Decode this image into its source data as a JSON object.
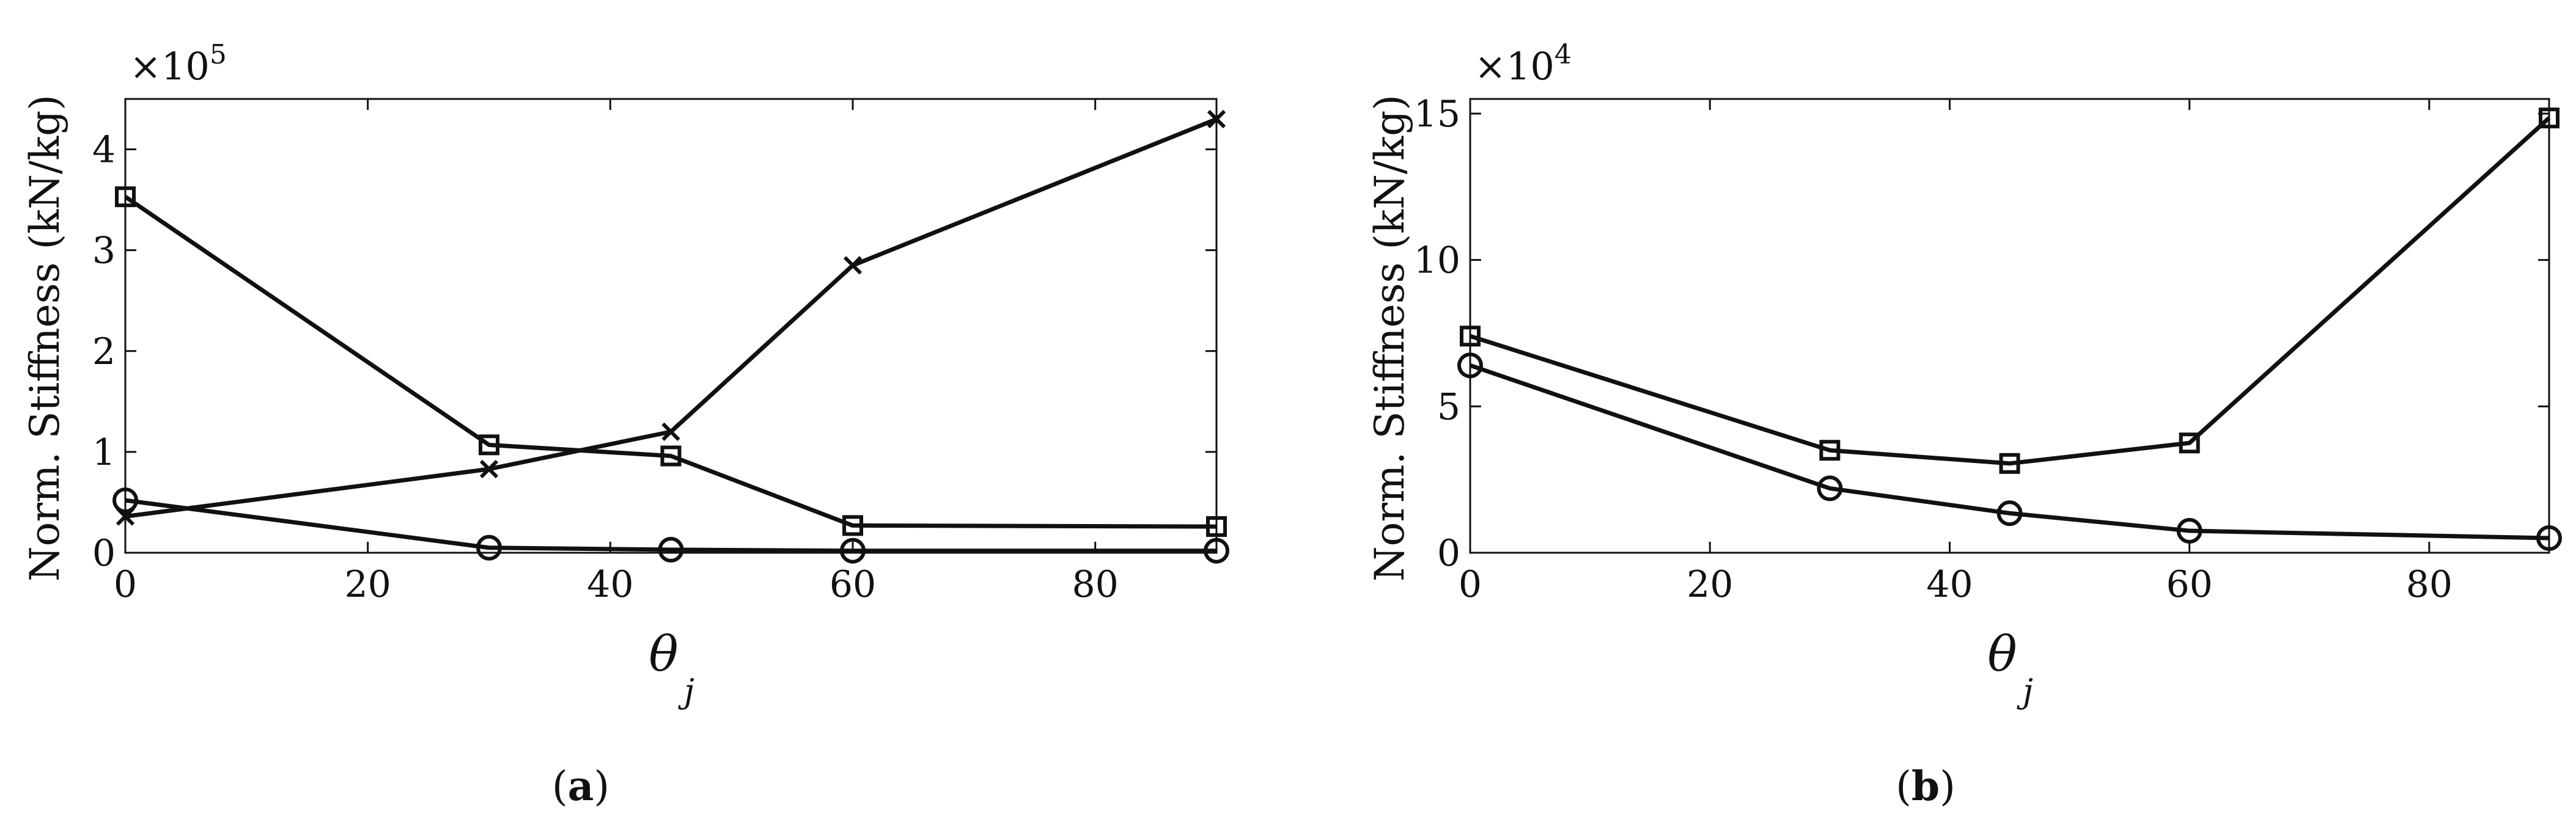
{
  "chart_data": [
    {
      "type": "line",
      "caption": "a",
      "xlabel": "θ",
      "xlabel_subscript": "j",
      "ylabel": "Norm. Stiffness (kN/kg)",
      "y_multiplier": "×10",
      "y_multiplier_exponent": "5",
      "xlim": [
        0,
        90
      ],
      "ylim": [
        0,
        4.5
      ],
      "x_ticks": [
        0,
        20,
        40,
        60,
        80
      ],
      "y_ticks": [
        0,
        1,
        2,
        3,
        4
      ],
      "grid": false,
      "series": [
        {
          "marker": "square",
          "x": [
            0,
            30,
            45,
            60,
            90
          ],
          "y": [
            3.53,
            1.07,
            0.96,
            0.27,
            0.26
          ]
        },
        {
          "marker": "x",
          "x": [
            0,
            30,
            45,
            60,
            90
          ],
          "y": [
            0.36,
            0.83,
            1.2,
            2.85,
            4.3
          ]
        },
        {
          "marker": "circle",
          "x": [
            0,
            30,
            45,
            60,
            90
          ],
          "y": [
            0.52,
            0.05,
            0.03,
            0.02,
            0.02
          ]
        }
      ]
    },
    {
      "type": "line",
      "caption": "b",
      "xlabel": "θ",
      "xlabel_subscript": "j",
      "ylabel": "Norm. Stiffness (kN/kg)",
      "y_multiplier": "×10",
      "y_multiplier_exponent": "4",
      "xlim": [
        0,
        90
      ],
      "ylim": [
        0,
        15.5
      ],
      "x_ticks": [
        0,
        20,
        40,
        60,
        80
      ],
      "y_ticks": [
        0,
        5,
        10,
        15
      ],
      "grid": false,
      "series": [
        {
          "marker": "square",
          "x": [
            0,
            30,
            45,
            60,
            90
          ],
          "y": [
            7.4,
            3.5,
            3.05,
            3.75,
            14.85
          ]
        },
        {
          "marker": "circle",
          "x": [
            0,
            30,
            45,
            60,
            90
          ],
          "y": [
            6.4,
            2.2,
            1.35,
            0.75,
            0.5
          ]
        }
      ]
    }
  ]
}
